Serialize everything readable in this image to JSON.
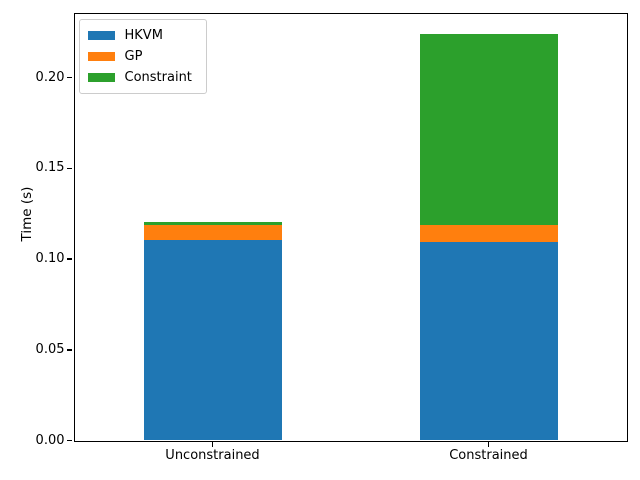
{
  "chart_data": {
    "type": "bar",
    "stacked": true,
    "title": "",
    "xlabel": "",
    "ylabel": "Time (s)",
    "categories": [
      "Unconstrained",
      "Constrained"
    ],
    "series": [
      {
        "name": "HKVM",
        "color": "#1f77b4",
        "values": [
          0.1105,
          0.1095
        ]
      },
      {
        "name": "GP",
        "color": "#ff7f0e",
        "values": [
          0.0085,
          0.0095
        ]
      },
      {
        "name": "Constraint",
        "color": "#2ca02c",
        "values": [
          0.0015,
          0.105
        ]
      }
    ],
    "ylim": [
      0,
      0.2353
    ],
    "xlim": [
      -0.5,
      1.5
    ],
    "bar_width_units": 0.5,
    "yticks": [
      0,
      0.05,
      0.1,
      0.15,
      0.2
    ],
    "ytick_labels": [
      "0.00",
      "0.05",
      "0.10",
      "0.15",
      "0.20"
    ],
    "legend": {
      "position": "upper-left"
    },
    "grid": false,
    "background": "#ffffff",
    "spine_color": "#000000"
  }
}
